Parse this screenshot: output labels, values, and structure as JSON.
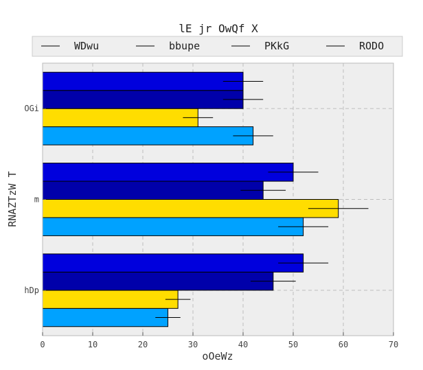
{
  "chart_data": {
    "type": "bar",
    "orientation": "horizontal",
    "title": "lE jr  OwQf X",
    "xlabel": "oOeWz",
    "ylabel": "RNAZTzW T",
    "xlim": [
      0,
      70
    ],
    "xticks": [
      0,
      10,
      20,
      30,
      40,
      50,
      60,
      70
    ],
    "grid": true,
    "legend_position": "top",
    "categories": [
      "hDp",
      "m",
      "OGi"
    ],
    "series": [
      {
        "name": "WDwu",
        "color": "#00a2ff",
        "values": [
          25,
          52,
          42
        ],
        "errors": [
          2.5,
          5,
          4
        ]
      },
      {
        "name": "bbupe",
        "color": "#ffdd00",
        "values": [
          27,
          59,
          31
        ],
        "errors": [
          2.5,
          6,
          3
        ]
      },
      {
        "name": "PKkG",
        "color": "#0000aa",
        "values": [
          46,
          44,
          40
        ],
        "errors": [
          4.5,
          4.5,
          4
        ]
      },
      {
        "name": "RODO",
        "color": "#0000dd",
        "values": [
          52,
          50,
          40
        ],
        "errors": [
          5,
          5,
          4
        ]
      }
    ]
  }
}
